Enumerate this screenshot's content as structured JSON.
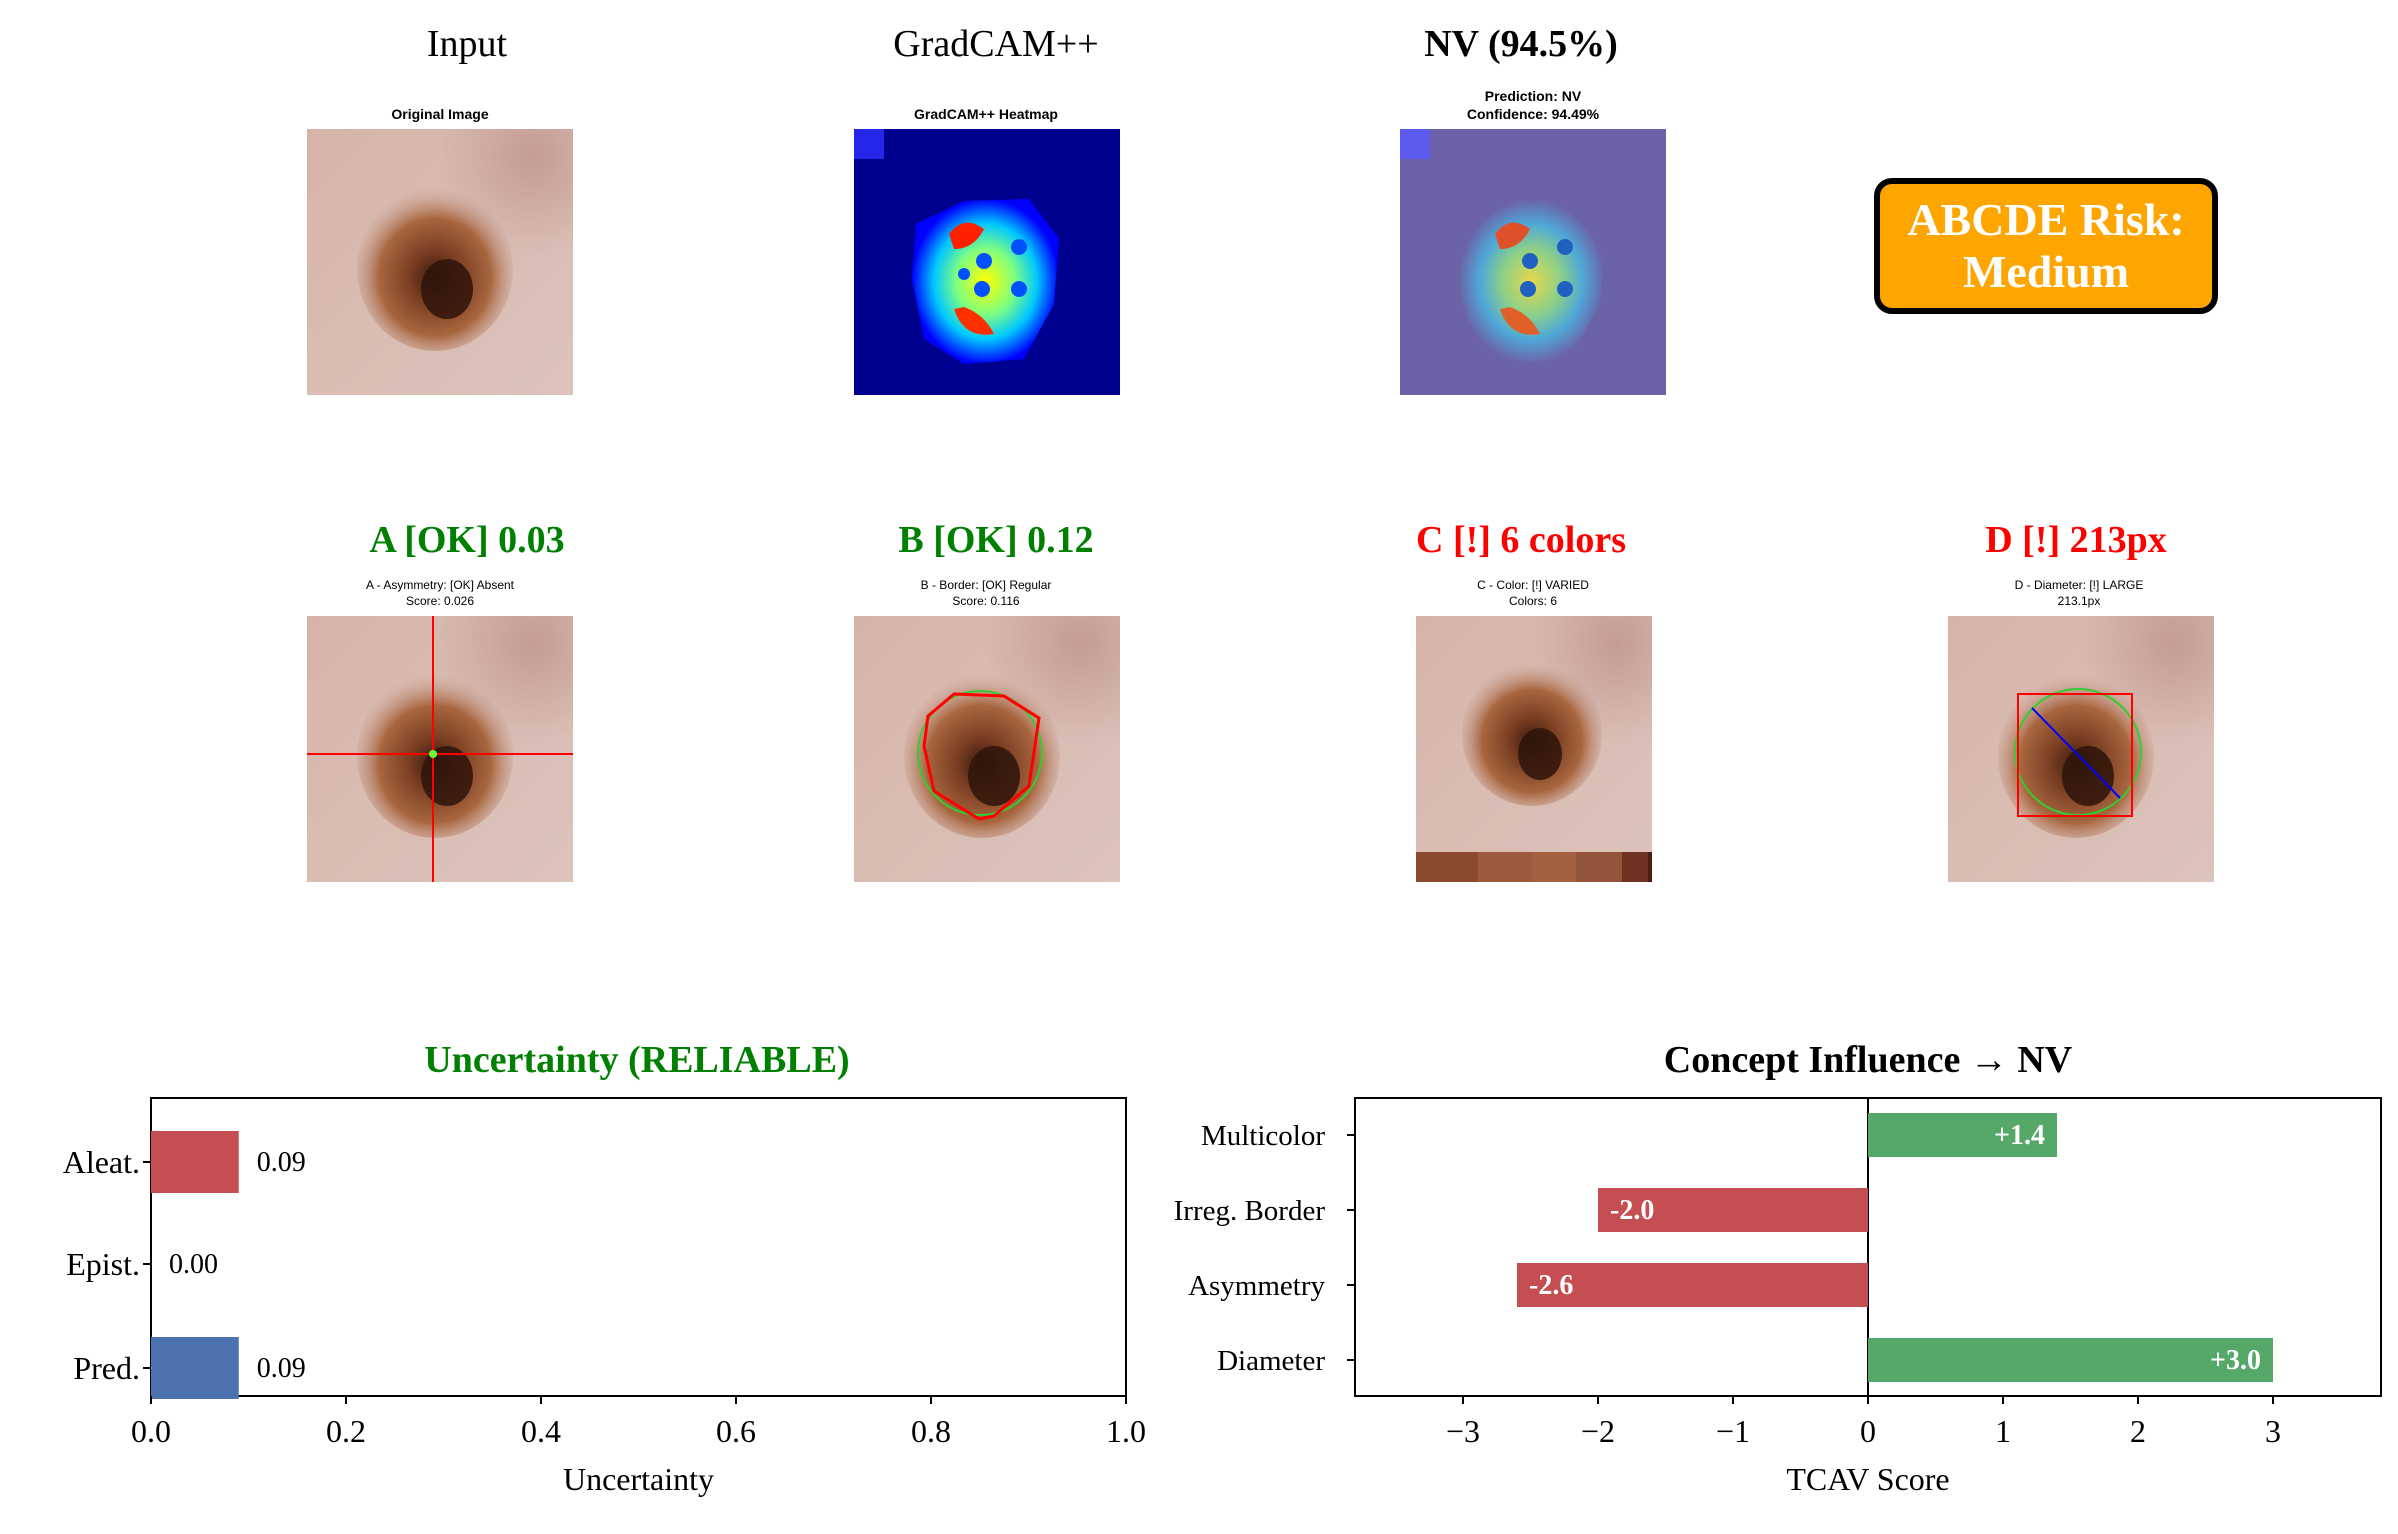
{
  "row1": {
    "input": {
      "title": "Input",
      "subtitle": "Original Image"
    },
    "gradcam": {
      "title": "GradCAM++",
      "subtitle": "GradCAM++ Heatmap"
    },
    "prediction": {
      "title": "NV (94.5%)",
      "subtitle_line1": "Prediction: NV",
      "subtitle_line2": "Confidence: 94.49%"
    },
    "risk": {
      "line1": "ABCDE Risk:",
      "line2": "Medium",
      "color": "#ffa500"
    }
  },
  "row2": {
    "a": {
      "title": "A [OK] 0.03",
      "sub1": "A - Asymmetry: [OK] Absent",
      "sub2": "Score: 0.026"
    },
    "b": {
      "title": "B [OK] 0.12",
      "sub1": "B - Border: [OK] Regular",
      "sub2": "Score: 0.116"
    },
    "c": {
      "title": "C [!] 6 colors",
      "sub1": "C - Color: [!] VARIED",
      "sub2": "Colors: 6",
      "palette": [
        "#8a4a2e",
        "#9d5a3c",
        "#a4603f",
        "#93553a",
        "#6e3322",
        "#4a1f14"
      ]
    },
    "d": {
      "title": "D [!] 213px",
      "sub1": "D - Diameter: [!] LARGE",
      "sub2": "213.1px"
    }
  },
  "chart_data": [
    {
      "type": "bar",
      "orientation": "horizontal",
      "title": "Uncertainty (RELIABLE)",
      "title_color": "#008000",
      "categories": [
        "Aleat.",
        "Epist.",
        "Pred."
      ],
      "values": [
        0.09,
        0.0,
        0.09
      ],
      "value_labels": [
        "0.09",
        "0.00",
        "0.09"
      ],
      "colors": [
        "#c44e52",
        "#c44e52",
        "#4c72b0"
      ],
      "xlabel": "Uncertainty",
      "xlim": [
        0,
        1
      ],
      "xticks": [
        "0.0",
        "0.2",
        "0.4",
        "0.6",
        "0.8",
        "1.0"
      ]
    },
    {
      "type": "bar",
      "orientation": "horizontal",
      "title": "Concept Influence → NV",
      "categories": [
        "Multicolor",
        "Irreg. Border",
        "Asymmetry",
        "Diameter"
      ],
      "values": [
        1.4,
        -2.0,
        -2.6,
        3.0
      ],
      "value_labels": [
        "+1.4",
        "-2.0",
        "-2.6",
        "+3.0"
      ],
      "positive_color": "#55a868",
      "negative_color": "#c44e52",
      "xlabel": "TCAV Score",
      "xlim": [
        -3.8,
        3.8
      ],
      "xticks": [
        "−3",
        "−2",
        "−1",
        "0",
        "1",
        "2",
        "3"
      ]
    }
  ]
}
